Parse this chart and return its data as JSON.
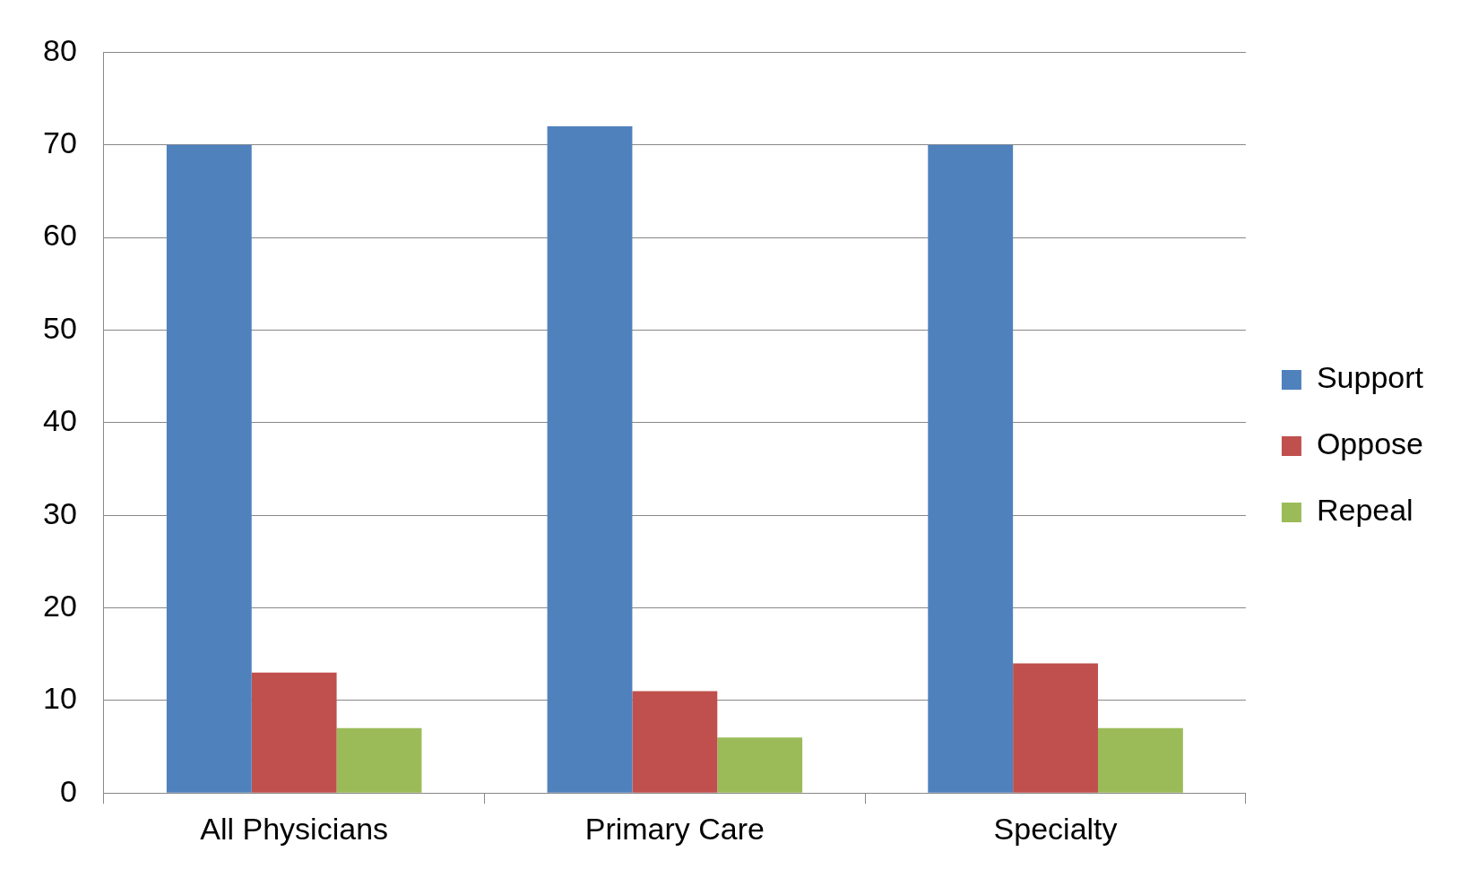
{
  "chart_data": {
    "type": "bar",
    "categories": [
      "All Physicians",
      "Primary Care",
      "Specialty"
    ],
    "series": [
      {
        "name": "Support",
        "color": "#4f81bd",
        "values": [
          70,
          72,
          70
        ]
      },
      {
        "name": "Oppose",
        "color": "#c0504d",
        "values": [
          13,
          11,
          14
        ]
      },
      {
        "name": "Repeal",
        "color": "#9bbb59",
        "values": [
          7,
          6,
          7
        ]
      }
    ],
    "ylim": [
      0,
      80
    ],
    "yticks": [
      0,
      10,
      20,
      30,
      40,
      50,
      60,
      70,
      80
    ],
    "grid": "y",
    "legend": "right"
  }
}
